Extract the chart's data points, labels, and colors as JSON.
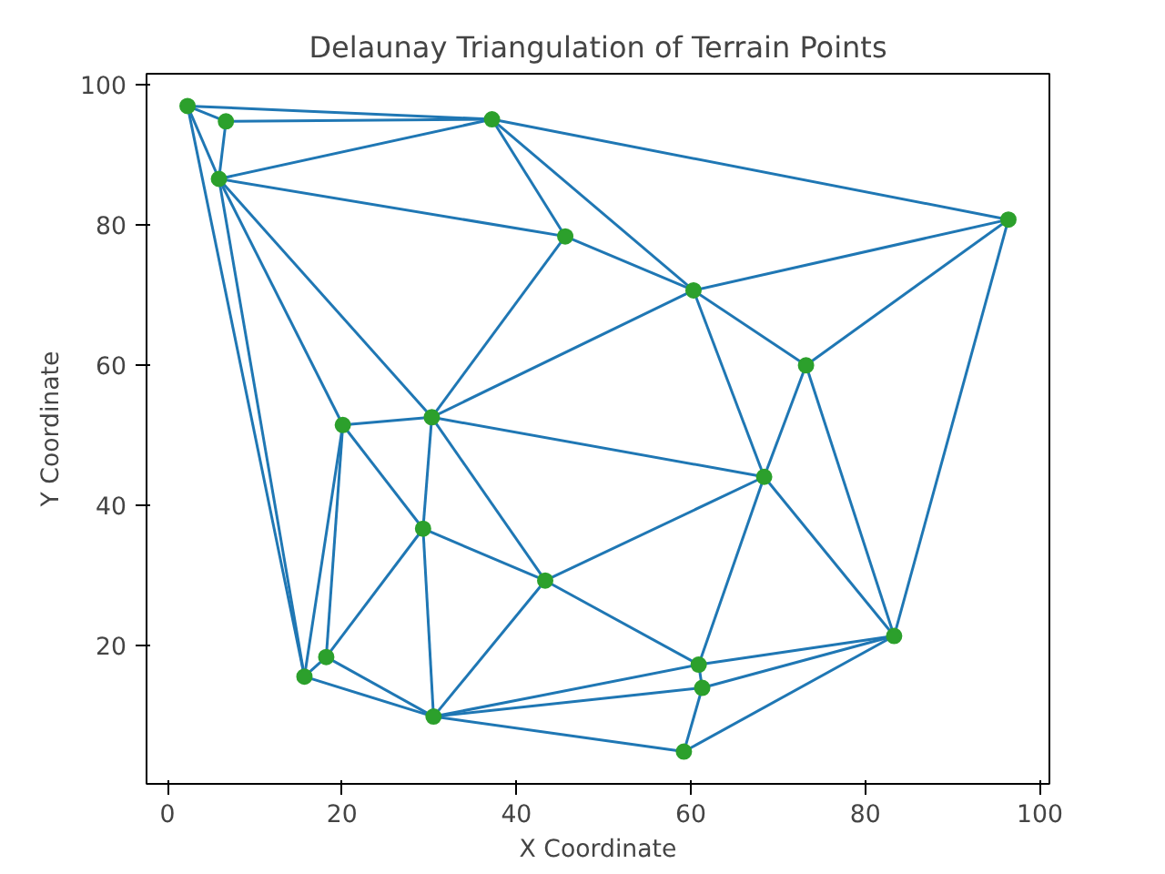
{
  "chart_data": {
    "type": "scatter",
    "title": "Delaunay Triangulation of Terrain Points",
    "xlabel": "X Coordinate",
    "ylabel": "Y Coordinate",
    "xlim": [
      -2.4,
      101.1
    ],
    "ylim": [
      0.3,
      101.6
    ],
    "xticks": [
      0,
      20,
      40,
      60,
      80,
      100
    ],
    "yticks": [
      20,
      40,
      60,
      80,
      100
    ],
    "grid": false,
    "series": [
      {
        "type": "line",
        "color": "#1f77b4",
        "x": [
          2.3,
          6.7
        ],
        "values": [
          97.0,
          94.8
        ]
      },
      {
        "type": "line",
        "color": "#1f77b4",
        "x": [
          2.3,
          37.2
        ],
        "values": [
          97.0,
          95.1
        ]
      },
      {
        "type": "line",
        "color": "#1f77b4",
        "x": [
          2.3,
          5.9
        ],
        "values": [
          97.0,
          86.6
        ]
      },
      {
        "type": "line",
        "color": "#1f77b4",
        "x": [
          2.3,
          15.7
        ],
        "values": [
          97.0,
          15.6
        ]
      },
      {
        "type": "line",
        "color": "#1f77b4",
        "x": [
          6.7,
          5.9
        ],
        "values": [
          94.8,
          86.6
        ]
      },
      {
        "type": "line",
        "color": "#1f77b4",
        "x": [
          6.7,
          37.2
        ],
        "values": [
          94.8,
          95.1
        ]
      },
      {
        "type": "line",
        "color": "#1f77b4",
        "x": [
          5.9,
          37.2
        ],
        "values": [
          86.6,
          95.1
        ]
      },
      {
        "type": "line",
        "color": "#1f77b4",
        "x": [
          5.9,
          45.6
        ],
        "values": [
          86.6,
          78.4
        ]
      },
      {
        "type": "line",
        "color": "#1f77b4",
        "x": [
          5.9,
          30.3
        ],
        "values": [
          86.6,
          52.6
        ]
      },
      {
        "type": "line",
        "color": "#1f77b4",
        "x": [
          5.9,
          20.1
        ],
        "values": [
          86.6,
          51.5
        ]
      },
      {
        "type": "line",
        "color": "#1f77b4",
        "x": [
          5.9,
          15.7
        ],
        "values": [
          86.6,
          15.6
        ]
      },
      {
        "type": "line",
        "color": "#1f77b4",
        "x": [
          37.2,
          45.6
        ],
        "values": [
          95.1,
          78.4
        ]
      },
      {
        "type": "line",
        "color": "#1f77b4",
        "x": [
          37.2,
          60.3
        ],
        "values": [
          95.1,
          70.7
        ]
      },
      {
        "type": "line",
        "color": "#1f77b4",
        "x": [
          37.2,
          96.4
        ],
        "values": [
          95.1,
          80.8
        ]
      },
      {
        "type": "line",
        "color": "#1f77b4",
        "x": [
          45.6,
          60.3
        ],
        "values": [
          78.4,
          70.7
        ]
      },
      {
        "type": "line",
        "color": "#1f77b4",
        "x": [
          45.6,
          30.3
        ],
        "values": [
          78.4,
          52.6
        ]
      },
      {
        "type": "line",
        "color": "#1f77b4",
        "x": [
          60.3,
          96.4
        ],
        "values": [
          70.7,
          80.8
        ]
      },
      {
        "type": "line",
        "color": "#1f77b4",
        "x": [
          60.3,
          73.2
        ],
        "values": [
          70.7,
          60.0
        ]
      },
      {
        "type": "line",
        "color": "#1f77b4",
        "x": [
          60.3,
          68.4
        ],
        "values": [
          70.7,
          44.1
        ]
      },
      {
        "type": "line",
        "color": "#1f77b4",
        "x": [
          60.3,
          30.3
        ],
        "values": [
          70.7,
          52.6
        ]
      },
      {
        "type": "line",
        "color": "#1f77b4",
        "x": [
          96.4,
          73.2
        ],
        "values": [
          80.8,
          60.0
        ]
      },
      {
        "type": "line",
        "color": "#1f77b4",
        "x": [
          96.4,
          83.3
        ],
        "values": [
          80.8,
          21.4
        ]
      },
      {
        "type": "line",
        "color": "#1f77b4",
        "x": [
          73.2,
          68.4
        ],
        "values": [
          60.0,
          44.1
        ]
      },
      {
        "type": "line",
        "color": "#1f77b4",
        "x": [
          73.2,
          83.3
        ],
        "values": [
          60.0,
          21.4
        ]
      },
      {
        "type": "line",
        "color": "#1f77b4",
        "x": [
          20.1,
          30.3
        ],
        "values": [
          51.5,
          52.6
        ]
      },
      {
        "type": "line",
        "color": "#1f77b4",
        "x": [
          20.1,
          29.3
        ],
        "values": [
          51.5,
          36.7
        ]
      },
      {
        "type": "line",
        "color": "#1f77b4",
        "x": [
          20.1,
          18.2
        ],
        "values": [
          51.5,
          18.4
        ]
      },
      {
        "type": "line",
        "color": "#1f77b4",
        "x": [
          20.1,
          15.7
        ],
        "values": [
          51.5,
          15.6
        ]
      },
      {
        "type": "line",
        "color": "#1f77b4",
        "x": [
          30.3,
          29.3
        ],
        "values": [
          52.6,
          36.7
        ]
      },
      {
        "type": "line",
        "color": "#1f77b4",
        "x": [
          30.3,
          43.3
        ],
        "values": [
          52.6,
          29.3
        ]
      },
      {
        "type": "line",
        "color": "#1f77b4",
        "x": [
          30.3,
          68.4
        ],
        "values": [
          52.6,
          44.1
        ]
      },
      {
        "type": "line",
        "color": "#1f77b4",
        "x": [
          29.3,
          43.3
        ],
        "values": [
          36.7,
          29.3
        ]
      },
      {
        "type": "line",
        "color": "#1f77b4",
        "x": [
          29.3,
          18.2
        ],
        "values": [
          36.7,
          18.4
        ]
      },
      {
        "type": "line",
        "color": "#1f77b4",
        "x": [
          29.3,
          30.5
        ],
        "values": [
          36.7,
          9.9
        ]
      },
      {
        "type": "line",
        "color": "#1f77b4",
        "x": [
          43.3,
          30.5
        ],
        "values": [
          29.3,
          9.9
        ]
      },
      {
        "type": "line",
        "color": "#1f77b4",
        "x": [
          43.3,
          68.4
        ],
        "values": [
          29.3,
          44.1
        ]
      },
      {
        "type": "line",
        "color": "#1f77b4",
        "x": [
          43.3,
          60.9
        ],
        "values": [
          29.3,
          17.3
        ]
      },
      {
        "type": "line",
        "color": "#1f77b4",
        "x": [
          18.2,
          15.7
        ],
        "values": [
          18.4,
          15.6
        ]
      },
      {
        "type": "line",
        "color": "#1f77b4",
        "x": [
          18.2,
          30.5
        ],
        "values": [
          18.4,
          9.9
        ]
      },
      {
        "type": "line",
        "color": "#1f77b4",
        "x": [
          15.7,
          30.5
        ],
        "values": [
          15.6,
          9.9
        ]
      },
      {
        "type": "line",
        "color": "#1f77b4",
        "x": [
          30.5,
          60.9
        ],
        "values": [
          9.9,
          17.3
        ]
      },
      {
        "type": "line",
        "color": "#1f77b4",
        "x": [
          30.5,
          61.3
        ],
        "values": [
          9.9,
          14.0
        ]
      },
      {
        "type": "line",
        "color": "#1f77b4",
        "x": [
          30.5,
          59.2
        ],
        "values": [
          9.9,
          4.9
        ]
      },
      {
        "type": "line",
        "color": "#1f77b4",
        "x": [
          68.4,
          60.9
        ],
        "values": [
          44.1,
          17.3
        ]
      },
      {
        "type": "line",
        "color": "#1f77b4",
        "x": [
          68.4,
          83.3
        ],
        "values": [
          44.1,
          21.4
        ]
      },
      {
        "type": "line",
        "color": "#1f77b4",
        "x": [
          60.9,
          83.3
        ],
        "values": [
          17.3,
          21.4
        ]
      },
      {
        "type": "line",
        "color": "#1f77b4",
        "x": [
          60.9,
          61.3
        ],
        "values": [
          17.3,
          14.0
        ]
      },
      {
        "type": "line",
        "color": "#1f77b4",
        "x": [
          61.3,
          83.3
        ],
        "values": [
          14.0,
          21.4
        ]
      },
      {
        "type": "line",
        "color": "#1f77b4",
        "x": [
          61.3,
          59.2
        ],
        "values": [
          14.0,
          4.9
        ]
      },
      {
        "type": "line",
        "color": "#1f77b4",
        "x": [
          59.2,
          83.3
        ],
        "values": [
          4.9,
          21.4
        ]
      },
      {
        "color": "#2ca02c",
        "marker": "circle",
        "x": [
          2.3,
          6.7,
          5.9,
          37.2,
          45.6,
          60.3,
          96.4,
          73.2,
          20.1,
          30.3,
          68.4,
          29.3,
          43.3,
          18.2,
          15.7,
          30.5,
          60.9,
          61.3,
          59.2,
          83.3
        ],
        "values": [
          97.0,
          94.8,
          86.6,
          95.1,
          78.4,
          70.7,
          80.8,
          60.0,
          51.5,
          52.6,
          44.1,
          36.7,
          29.3,
          18.4,
          15.6,
          9.9,
          17.3,
          14.0,
          4.9,
          21.4
        ]
      }
    ]
  }
}
